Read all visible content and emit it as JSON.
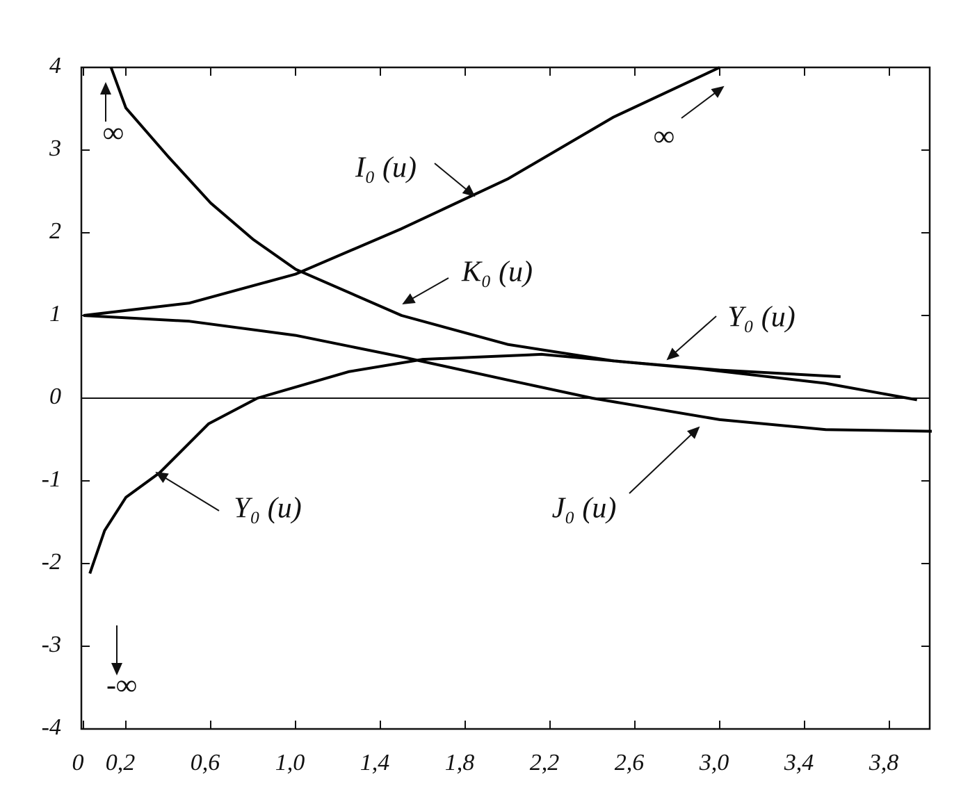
{
  "chart_data": {
    "type": "line",
    "xlim": [
      0,
      4
    ],
    "ylim": [
      -4,
      4
    ],
    "xticks": [
      0,
      {
        "value": 0.2,
        "label": "0,2"
      },
      {
        "value": 0.6,
        "label": "0,6"
      },
      {
        "value": 1.0,
        "label": "1,0"
      },
      {
        "value": 1.4,
        "label": "1,4"
      },
      {
        "value": 1.8,
        "label": "1,8"
      },
      {
        "value": 2.2,
        "label": "2,2"
      },
      {
        "value": 2.6,
        "label": "2,6"
      },
      {
        "value": 3.0,
        "label": "3,0"
      },
      {
        "value": 3.4,
        "label": "3,4"
      },
      {
        "value": 3.8,
        "label": "3,8"
      }
    ],
    "yticks": [
      -4,
      -3,
      -2,
      -1,
      0,
      1,
      2,
      3,
      4
    ],
    "series": [
      {
        "name": "I₀ (u)",
        "color": "#000000",
        "x": [
          0,
          0.5,
          1.0,
          1.5,
          2.0,
          2.5,
          3.0
        ],
        "values": [
          1,
          1.15,
          1.5,
          2.05,
          2.65,
          3.4,
          4.0
        ]
      },
      {
        "name": "K₀ (u)",
        "color": "#000000",
        "x": [
          0.13,
          0.2,
          0.4,
          0.6,
          0.8,
          1.0,
          1.5,
          2.0,
          2.5,
          3.0,
          3.57
        ],
        "values": [
          4.0,
          3.51,
          2.92,
          2.36,
          1.92,
          1.56,
          1.0,
          0.65,
          0.45,
          0.34,
          0.26
        ]
      },
      {
        "name": "J₀ (u)",
        "color": "#000000",
        "x": [
          0,
          0.5,
          1.0,
          1.5,
          2.0,
          2.4,
          3.0,
          3.5,
          4.0
        ],
        "values": [
          1,
          0.93,
          0.76,
          0.5,
          0.22,
          0,
          -0.26,
          -0.38,
          -0.4
        ]
      },
      {
        "name": "Y₀ (u)",
        "color": "#000000",
        "x": [
          0.03,
          0.1,
          0.2,
          0.36,
          0.59,
          0.82,
          1.25,
          1.6,
          2.16,
          2.89,
          3.5,
          3.93
        ],
        "values": [
          -2.12,
          -1.6,
          -1.2,
          -0.9,
          -0.31,
          0,
          0.32,
          0.47,
          0.53,
          0.36,
          0.18,
          -0.02
        ]
      }
    ],
    "annotations": [
      "Y₀ (u)",
      "∞",
      "∞",
      "-∞"
    ]
  }
}
